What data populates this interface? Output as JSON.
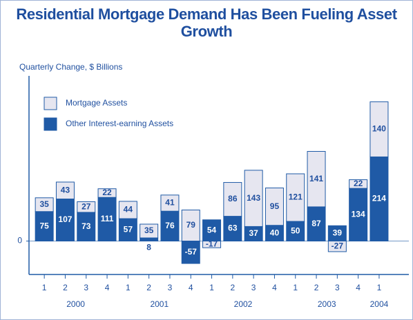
{
  "chart_data": {
    "type": "stacked_bar",
    "title": "Residential Mortgage Demand Has Been Fueling Asset Growth",
    "y_label": "Quarterly Change, $ Billions",
    "categories": [
      "1",
      "2",
      "3",
      "4",
      "1",
      "2",
      "3",
      "4",
      "1",
      "2",
      "3",
      "4",
      "1",
      "2",
      "3",
      "4",
      "1"
    ],
    "years": [
      "2000",
      "2001",
      "2002",
      "2003",
      "2004"
    ],
    "series": [
      {
        "name": "Other Interest-earning Assets",
        "color": "#1f5aa6",
        "values": [
          75,
          107,
          73,
          111,
          57,
          8,
          76,
          -57,
          54,
          63,
          37,
          40,
          50,
          87,
          39,
          134,
          214
        ]
      },
      {
        "name": "Mortgage Assets",
        "color": "#e6e6f0",
        "values": [
          35,
          43,
          27,
          22,
          44,
          35,
          41,
          79,
          -17,
          86,
          143,
          95,
          121,
          141,
          -27,
          22,
          140
        ]
      }
    ],
    "ylim": [
      -85,
      420
    ],
    "yticks": [
      0
    ]
  }
}
